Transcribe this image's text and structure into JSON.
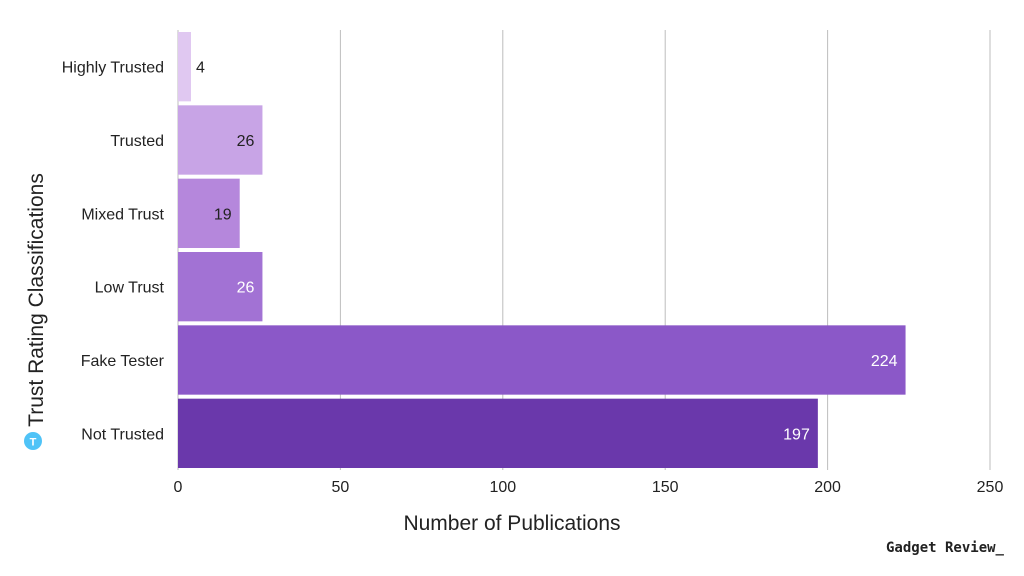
{
  "chart_data": {
    "type": "bar",
    "orientation": "horizontal",
    "categories": [
      "Highly Trusted",
      "Trusted",
      "Mixed Trust",
      "Low Trust",
      "Fake Tester",
      "Not Trusted"
    ],
    "values": [
      4,
      26,
      19,
      26,
      224,
      197
    ],
    "bar_colors": [
      "#e0c8f1",
      "#c8a4e6",
      "#b587dc",
      "#a272d4",
      "#8b58c8",
      "#6a38ab"
    ],
    "label_colors": [
      "#222222",
      "#222222",
      "#222222",
      "#ffffff",
      "#ffffff",
      "#ffffff"
    ],
    "xlabel": "Number of Publications",
    "ylabel": "Trust Rating Classifications",
    "xlim": [
      0,
      250
    ],
    "xticks": [
      0,
      50,
      100,
      150,
      200,
      250
    ],
    "grid": "vertical"
  },
  "ylabel_badge": "T",
  "ylabel_badge_color": "#4fc3f7",
  "watermark": "Gadget Review_"
}
